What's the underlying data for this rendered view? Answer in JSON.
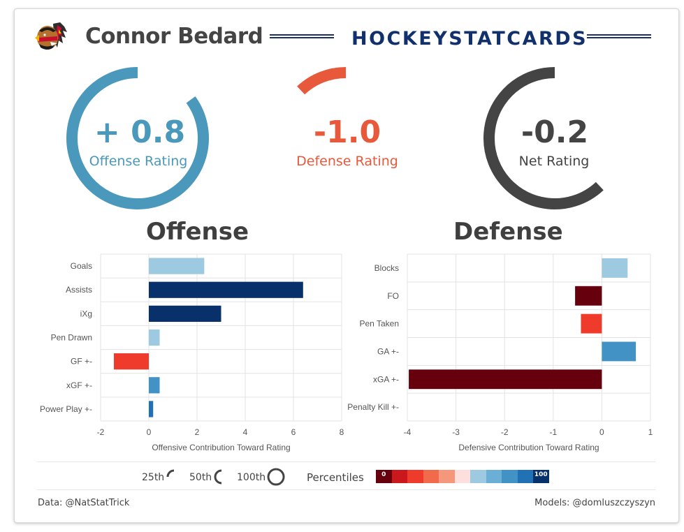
{
  "header": {
    "player_name": "Connor Bedard",
    "brand": "HOCKEYSTATCARDS",
    "logo_icon": "blackhawks-logo-icon"
  },
  "ratings": {
    "offense": {
      "value": "+ 0.8",
      "label": "Offense Rating",
      "color": "#4a98bb",
      "percentile": 0.85
    },
    "defense": {
      "value": "-1.0",
      "label": "Defense Rating",
      "color": "#e8583b",
      "percentile": 0.12
    },
    "net": {
      "value": "-0.2",
      "label": "Net Rating",
      "color": "#444444",
      "percentile": 0.62
    }
  },
  "sections": {
    "offense_title": "Offense",
    "defense_title": "Defense"
  },
  "chart_data": [
    {
      "type": "bar",
      "orientation": "horizontal",
      "title": "Offense",
      "categories": [
        "Goals",
        "Assists",
        "iXg",
        "Pen Drawn",
        "GF +-",
        "xGF +-",
        "Power Play +-"
      ],
      "values": [
        2.3,
        6.4,
        3.0,
        0.45,
        -1.45,
        0.45,
        0.18
      ],
      "colors": [
        "#9ecae1",
        "#08306b",
        "#08306b",
        "#9ecae1",
        "#ef3b2c",
        "#4292c6",
        "#2171b5"
      ],
      "xlabel": "Offensive Contribution Toward Rating",
      "xlim": [
        -2,
        8
      ],
      "xticks": [
        "-2",
        "0",
        "2",
        "4",
        "6",
        "8"
      ],
      "xtick_values": [
        -2,
        0,
        2,
        4,
        6,
        8
      ]
    },
    {
      "type": "bar",
      "orientation": "horizontal",
      "title": "Defense",
      "categories": [
        "Blocks",
        "FO",
        "Pen Taken",
        "GA +-",
        "xGA +-",
        "Penalty Kill +-"
      ],
      "values": [
        0.53,
        -0.55,
        -0.43,
        0.7,
        -3.97,
        0
      ],
      "colors": [
        "#9ecae1",
        "#67000d",
        "#ef3b2c",
        "#4292c6",
        "#67000d",
        "#cccccc"
      ],
      "xlabel": "Defensive Contribution Toward Rating",
      "xlim": [
        -4,
        1
      ],
      "xticks": [
        "-4",
        "-3",
        "-2",
        "-1",
        "0",
        "1"
      ],
      "xtick_values": [
        -4,
        -3,
        -2,
        -1,
        0,
        1
      ]
    }
  ],
  "legend": {
    "arc_labels": [
      "25th",
      "50th",
      "100th"
    ],
    "arc_values": [
      0.25,
      0.5,
      1.0
    ],
    "percentiles_label": "Percentiles",
    "scale_min_label": "0",
    "scale_max_label": "100",
    "scale_colors": [
      "#67000d",
      "#cb181d",
      "#ef3b2c",
      "#f16a4c",
      "#f4977a",
      "#fde0dd",
      "#9ecae1",
      "#6baed6",
      "#4292c6",
      "#2171b5",
      "#08306b"
    ]
  },
  "footer": {
    "data_credit": "Data: @NatStatTrick",
    "models_credit": "Models: @domluszczyszyn"
  }
}
